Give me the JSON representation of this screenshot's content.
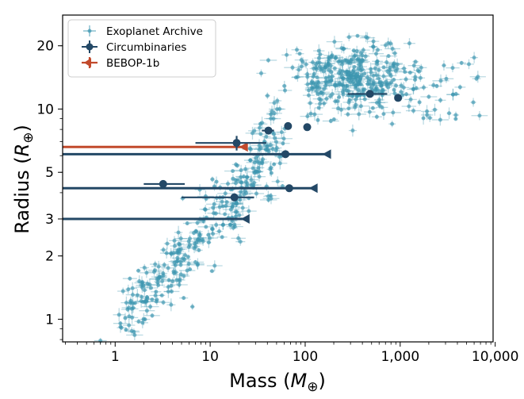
{
  "chart_data": {
    "type": "scatter",
    "xlabel": "Mass (M⊕)",
    "ylabel": "Radius (R⊕)",
    "xscale": "log",
    "yscale": "log",
    "xlim": [
      0.28,
      9500
    ],
    "ylim": [
      0.78,
      28
    ],
    "xticks": [
      {
        "value": 1,
        "label": "1"
      },
      {
        "value": 10,
        "label": "10"
      },
      {
        "value": 100,
        "label": "100"
      },
      {
        "value": 1000,
        "label": "1,000"
      },
      {
        "value": 10000,
        "label": "10,000"
      }
    ],
    "yticks": [
      {
        "value": 1,
        "label": "1"
      },
      {
        "value": 2,
        "label": "2"
      },
      {
        "value": 3,
        "label": "3"
      },
      {
        "value": 5,
        "label": "5"
      },
      {
        "value": 10,
        "label": "10"
      },
      {
        "value": 20,
        "label": "20"
      }
    ],
    "grid": false,
    "legend_position": "top-left",
    "legend": [
      {
        "label": "Exoplanet Archive",
        "series": "archive"
      },
      {
        "label": "Circumbinaries",
        "series": "circumbinaries"
      },
      {
        "label": "BEBOP-1b",
        "series": "bebop"
      }
    ],
    "colors": {
      "archive": "#3d96b0",
      "circumbinaries": "#234866",
      "bebop": "#c24a2c"
    },
    "series": [
      {
        "id": "circumbinaries",
        "points": [
          {
            "x": 3.2,
            "y": 4.4,
            "xerr": [
              1.2,
              2.2
            ],
            "yerr": [
              0.15,
              0.15
            ]
          },
          {
            "x": 18,
            "y": 3.8,
            "xerr": [
              13,
              11
            ],
            "yerr": [
              0.15,
              0.15
            ]
          },
          {
            "x": 19,
            "y": 6.9,
            "xerr": [
              12,
              20
            ],
            "yerr": [
              0.55,
              0.55
            ]
          },
          {
            "x": 41,
            "y": 7.9,
            "xerr": [
              6,
              6
            ],
            "yerr": [
              0.25,
              0.25
            ]
          },
          {
            "x": 62,
            "y": 6.1,
            "xerr": [
              40,
              60
            ],
            "yerr": [
              0.15,
              0.15
            ]
          },
          {
            "x": 66,
            "y": 8.3,
            "xerr": [
              0,
              0
            ],
            "yerr": [
              0,
              0
            ]
          },
          {
            "x": 68,
            "y": 4.2,
            "xerr": [
              18,
              18
            ],
            "yerr": [
              0.15,
              0.15
            ]
          },
          {
            "x": 105,
            "y": 8.2,
            "xerr": [
              0,
              0
            ],
            "yerr": [
              0,
              0
            ]
          },
          {
            "x": 480,
            "y": 11.8,
            "xerr": [
              200,
              250
            ],
            "yerr": [
              0.3,
              0.3
            ]
          },
          {
            "x": 950,
            "y": 11.3,
            "xerr": [
              0,
              0
            ],
            "yerr": [
              0,
              0
            ]
          }
        ]
      },
      {
        "id": "circumbinary-upper-limits",
        "points": [
          {
            "x": 25,
            "y": 3.0,
            "x_from": 0.28
          },
          {
            "x": 130,
            "y": 4.2,
            "x_from": 0.28
          },
          {
            "x": 180,
            "y": 6.1,
            "x_from": 0.28
          }
        ]
      },
      {
        "id": "bebop",
        "points": [
          {
            "x": 24,
            "y": 6.6,
            "x_from": 0.28
          }
        ]
      }
    ]
  }
}
